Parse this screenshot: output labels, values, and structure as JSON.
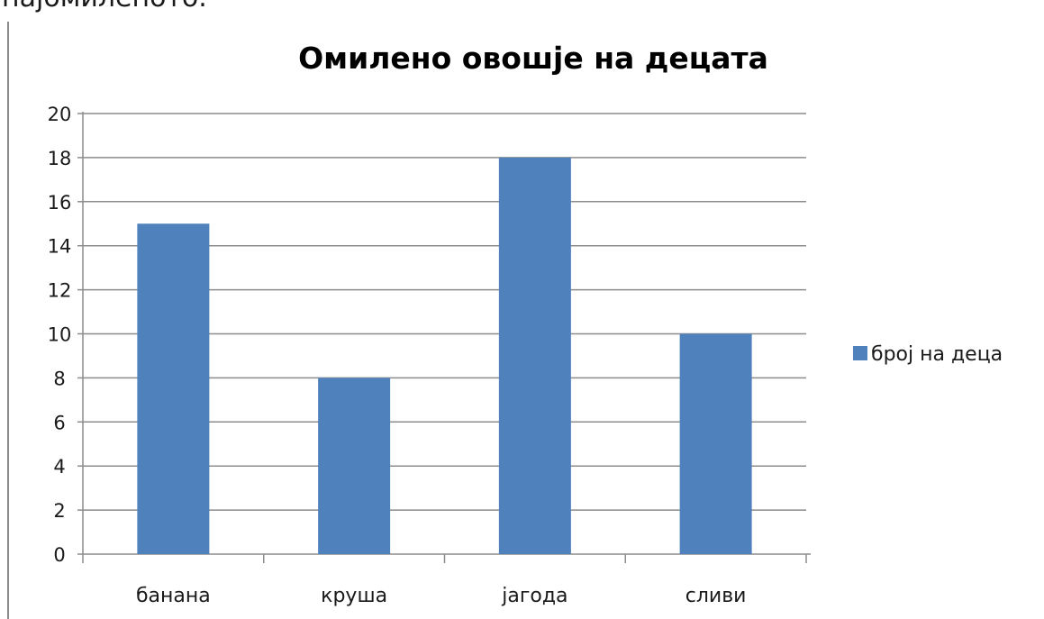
{
  "page": {
    "top_text": "најомиленото."
  },
  "chart_data": {
    "type": "bar",
    "title": "Омилено овошје на децата",
    "categories": [
      "банана",
      "круша",
      "јагода",
      "сливи"
    ],
    "series": [
      {
        "name": "број на деца",
        "values": [
          15,
          8,
          18,
          10
        ],
        "color": "#4f81bd"
      }
    ],
    "xlabel": "",
    "ylabel": "",
    "ylim": [
      0,
      20
    ],
    "yticks": [
      "0",
      "2",
      "4",
      "6",
      "8",
      "10",
      "12",
      "14",
      "16",
      "18",
      "20"
    ],
    "grid": true,
    "legend_position": "right"
  }
}
